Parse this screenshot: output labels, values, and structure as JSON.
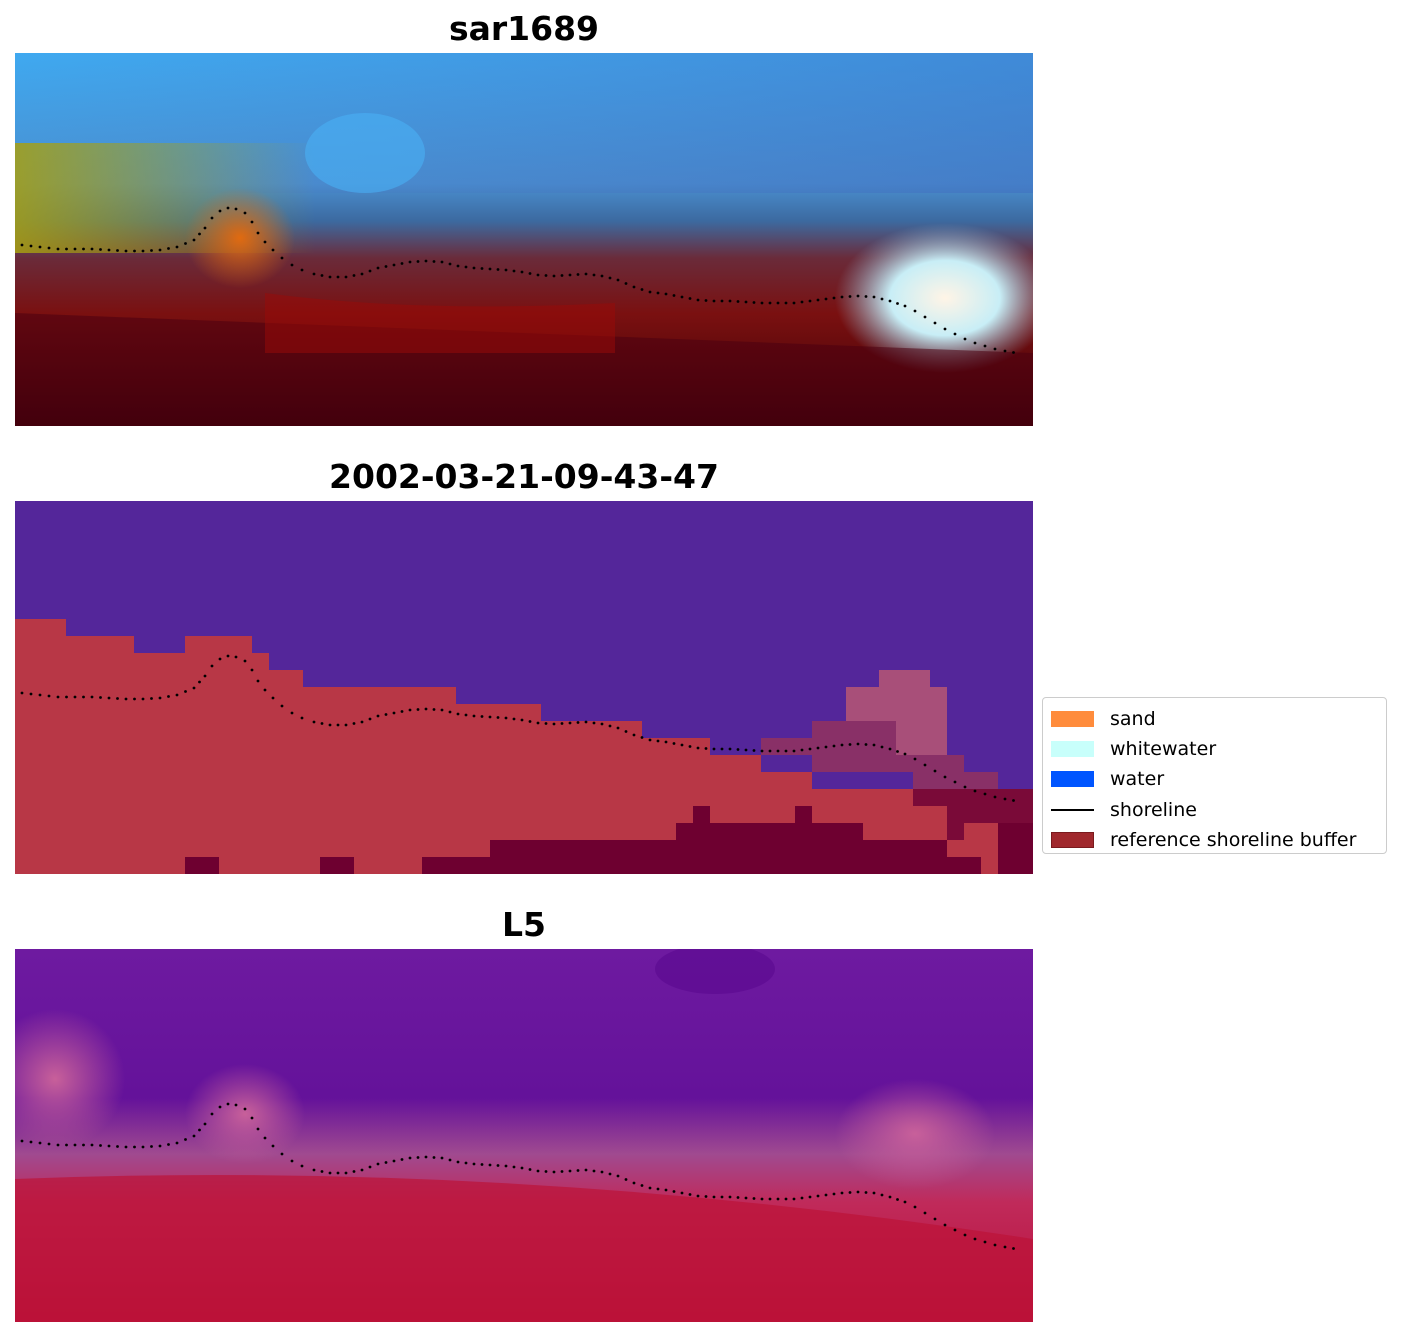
{
  "panels": [
    {
      "title": "sar1689"
    },
    {
      "title": "2002-03-21-09-43-47"
    },
    {
      "title": "L5"
    }
  ],
  "legend": {
    "items": [
      {
        "label": "sand",
        "color": "#ff8c3c",
        "kind": "patch"
      },
      {
        "label": "whitewater",
        "color": "#c8fffb",
        "kind": "patch"
      },
      {
        "label": "water",
        "color": "#0055ff",
        "kind": "patch"
      },
      {
        "label": "shoreline",
        "color": "#000000",
        "kind": "line"
      },
      {
        "label": "reference shoreline buffer",
        "color": "#a0282d",
        "kind": "patch",
        "edge": "#7a1a1e"
      }
    ]
  },
  "colors": {
    "classified_water": "#54269a",
    "classified_buffer": "#b83746",
    "classified_dark": "#6e0030",
    "shoreline_dots": "#000000"
  }
}
